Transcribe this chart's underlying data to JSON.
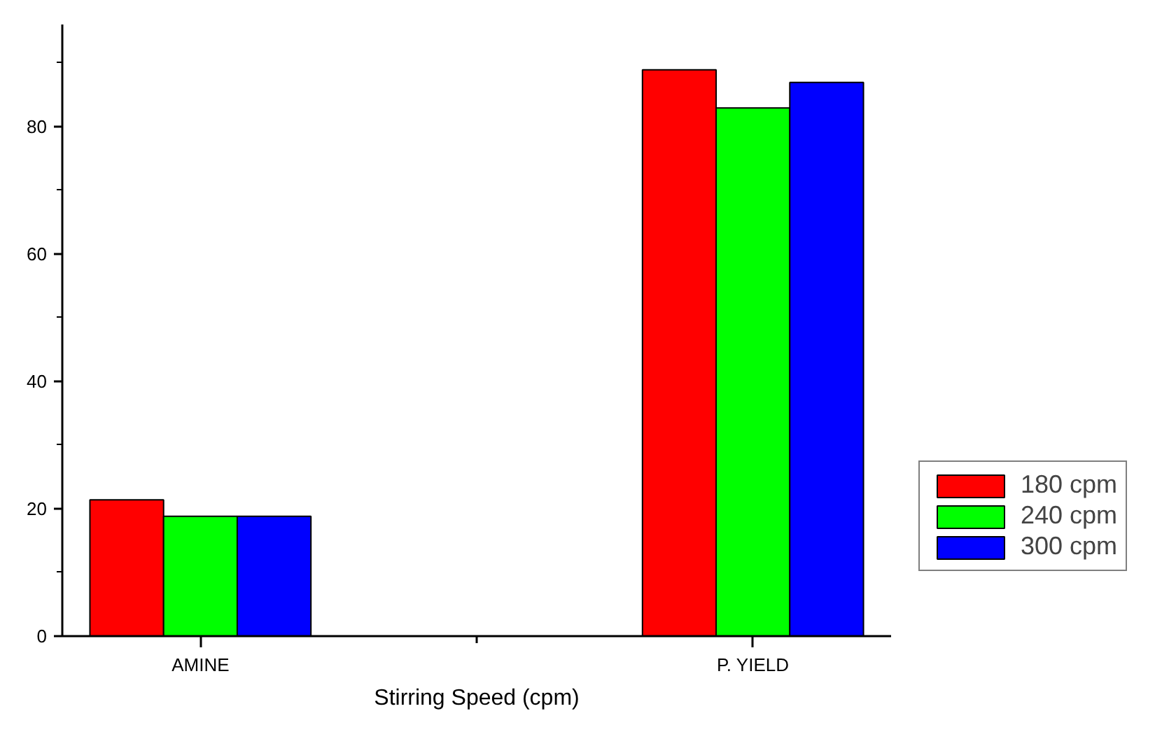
{
  "chart_data": {
    "type": "bar",
    "xlabel": "Stirring Speed (cpm)",
    "categories": [
      "AMINE",
      "P. YIELD"
    ],
    "series": [
      {
        "name": "180 cpm",
        "color": "#ff0000",
        "values": [
          21.4,
          88.9
        ]
      },
      {
        "name": "240 cpm",
        "color": "#00ff00",
        "values": [
          18.8,
          82.9
        ]
      },
      {
        "name": "300 cpm",
        "color": "#0000ff",
        "values": [
          18.8,
          86.9
        ]
      }
    ],
    "ylim": [
      0,
      96
    ],
    "yticks": [
      0,
      {
        "value": 10,
        "label": null
      },
      20,
      {
        "value": 30,
        "label": null
      },
      40,
      {
        "value": 50,
        "label": null
      },
      60,
      {
        "value": 70,
        "label": null
      },
      80,
      {
        "value": 90,
        "label": null
      }
    ],
    "grid": false,
    "legend": "right"
  }
}
